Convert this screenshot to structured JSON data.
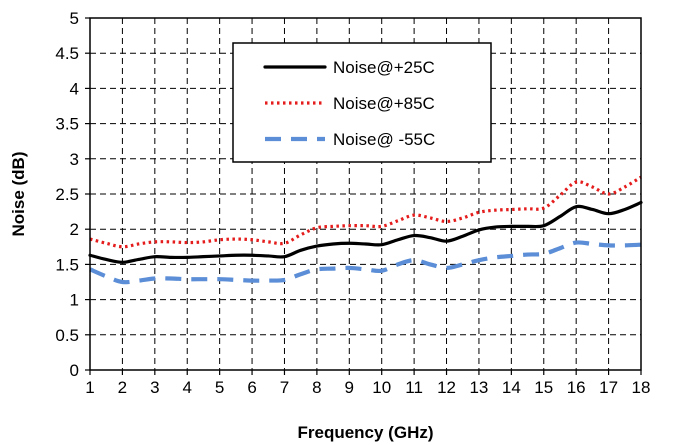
{
  "chart_data": {
    "type": "line",
    "title": "",
    "xlabel": "Frequency (GHz)",
    "ylabel": "Noise (dB)",
    "xlim": [
      1,
      18
    ],
    "ylim": [
      0,
      5
    ],
    "x_ticks": [
      "1",
      "2",
      "3",
      "4",
      "5",
      "6",
      "7",
      "8",
      "9",
      "10",
      "11",
      "12",
      "13",
      "14",
      "15",
      "16",
      "17",
      "18"
    ],
    "y_ticks": [
      "0",
      "0.5",
      "1",
      "1.5",
      "2",
      "2.5",
      "3",
      "3.5",
      "4",
      "4.5",
      "5"
    ],
    "grid": true,
    "legend_position": "top-center",
    "series": [
      {
        "name": "Noise@+25C",
        "color": "#000000",
        "style": "solid",
        "x": [
          1,
          1.5,
          2,
          2.5,
          3,
          3.5,
          4,
          4.5,
          5,
          5.5,
          6,
          6.5,
          7,
          7.5,
          8,
          8.5,
          9,
          9.5,
          10,
          10.5,
          11,
          11.5,
          12,
          12.5,
          13,
          13.5,
          14,
          14.5,
          15,
          15.5,
          16,
          16.5,
          17,
          17.5,
          18
        ],
        "values": [
          1.63,
          1.57,
          1.53,
          1.57,
          1.61,
          1.6,
          1.6,
          1.61,
          1.62,
          1.63,
          1.63,
          1.62,
          1.61,
          1.7,
          1.76,
          1.79,
          1.8,
          1.79,
          1.78,
          1.85,
          1.91,
          1.88,
          1.83,
          1.9,
          1.99,
          2.03,
          2.04,
          2.04,
          2.05,
          2.18,
          2.32,
          2.28,
          2.22,
          2.28,
          2.38
        ]
      },
      {
        "name": "Noise@+85C",
        "color": "#e51c1c",
        "style": "dotted",
        "x": [
          1,
          1.5,
          2,
          2.5,
          3,
          3.5,
          4,
          4.5,
          5,
          5.5,
          6,
          6.5,
          7,
          7.5,
          8,
          8.5,
          9,
          9.5,
          10,
          10.5,
          11,
          11.5,
          12,
          12.5,
          13,
          13.5,
          14,
          14.5,
          15,
          15.5,
          16,
          16.5,
          17,
          17.5,
          18
        ],
        "values": [
          1.86,
          1.8,
          1.75,
          1.79,
          1.82,
          1.82,
          1.81,
          1.82,
          1.85,
          1.86,
          1.85,
          1.82,
          1.8,
          1.92,
          2.02,
          2.04,
          2.05,
          2.05,
          2.04,
          2.12,
          2.2,
          2.16,
          2.11,
          2.16,
          2.24,
          2.27,
          2.28,
          2.29,
          2.3,
          2.48,
          2.67,
          2.6,
          2.5,
          2.6,
          2.74
        ]
      },
      {
        "name": "Noise@ -55C",
        "color": "#5b8ed6",
        "style": "dashed",
        "x": [
          1,
          1.5,
          2,
          2.5,
          3,
          3.5,
          4,
          4.5,
          5,
          5.5,
          6,
          6.5,
          7,
          7.5,
          8,
          8.5,
          9,
          9.5,
          10,
          10.5,
          11,
          11.5,
          12,
          12.5,
          13,
          13.5,
          14,
          14.5,
          15,
          15.5,
          16,
          16.5,
          17,
          17.5,
          18
        ],
        "values": [
          1.43,
          1.33,
          1.25,
          1.27,
          1.3,
          1.3,
          1.29,
          1.29,
          1.29,
          1.28,
          1.27,
          1.27,
          1.28,
          1.36,
          1.43,
          1.44,
          1.45,
          1.43,
          1.41,
          1.5,
          1.56,
          1.5,
          1.45,
          1.5,
          1.56,
          1.6,
          1.62,
          1.64,
          1.65,
          1.73,
          1.81,
          1.79,
          1.77,
          1.77,
          1.78
        ]
      }
    ]
  }
}
